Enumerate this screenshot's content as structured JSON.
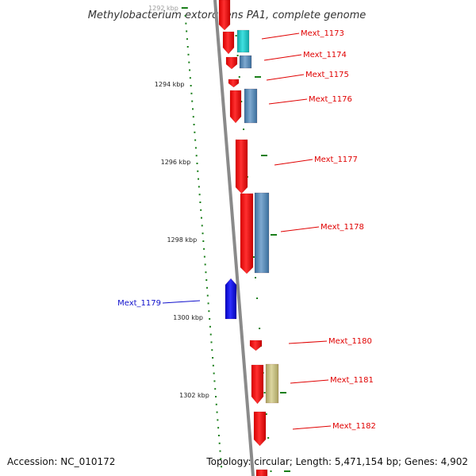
{
  "title": "Methylobacterium extorquens PA1, complete genome",
  "footer": {
    "accession": "Accession: NC_010172",
    "summary": "Topology: circular; Length: 5,471,154 bp; Genes: 4,902"
  },
  "scale": {
    "tick_labels": [
      "1292 kbp",
      "1294 kbp",
      "1296 kbp",
      "1298 kbp",
      "1300 kbp",
      "1302 kbp"
    ]
  },
  "colors": {
    "red": "#ff0000",
    "steelblue": "#4f86b8",
    "cyan": "#19c4c4",
    "khaki": "#bdb76b",
    "blue": "#1010e0",
    "tick": "#1a7f1a",
    "axis": "#8a8a8a",
    "red_label": "#e00000",
    "blue_label": "#1010cc"
  },
  "genes": [
    {
      "label": "Mext_1173"
    },
    {
      "label": "Mext_1174"
    },
    {
      "label": "Mext_1175"
    },
    {
      "label": "Mext_1176"
    },
    {
      "label": "Mext_1177"
    },
    {
      "label": "Mext_1178"
    },
    {
      "label": "Mext_1179"
    },
    {
      "label": "Mext_1180"
    },
    {
      "label": "Mext_1181"
    },
    {
      "label": "Mext_1182"
    }
  ]
}
